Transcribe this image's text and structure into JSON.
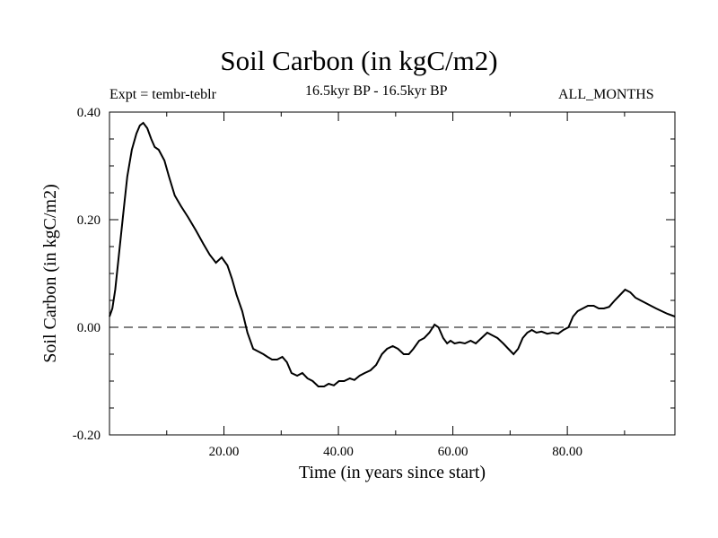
{
  "header": {
    "title": "Soil Carbon (in kgC/m2)",
    "experiment": "Expt = tembr-teblr",
    "period": "16.5kyr BP - 16.5kyr BP",
    "months": "ALL_MONTHS"
  },
  "chart_data": {
    "type": "line",
    "title": "Soil Carbon (in kgC/m2)",
    "xlabel": "Time (in years since start)",
    "ylabel": "Soil Carbon (in kgC/m2)",
    "xlim": [
      0,
      98.8
    ],
    "ylim": [
      -0.2,
      0.4
    ],
    "xticks": [
      20,
      40,
      60,
      80
    ],
    "xtick_labels": [
      "20.00",
      "40.00",
      "60.00",
      "80.00"
    ],
    "yticks": [
      -0.2,
      0.0,
      0.2,
      0.4
    ],
    "ytick_labels": [
      "-0.20",
      "0.00",
      "0.20",
      "0.40"
    ],
    "zero_line": true,
    "series": [
      {
        "x": [
          0,
          0.5,
          1,
          1.6,
          2.5,
          3.1,
          3.9,
          4.7,
          5.3,
          5.9,
          6.6,
          7.3,
          7.9,
          8.6,
          9.6,
          10.4,
          11.4,
          12.5,
          13.7,
          15.1,
          16.4,
          17.5,
          18.6,
          19.6,
          20.6,
          21.4,
          22.2,
          23.2,
          24.1,
          25.1,
          26.0,
          26.9,
          27.6,
          28.4,
          29.3,
          30.2,
          31.0,
          31.8,
          32.8,
          33.7,
          34.6,
          35.5,
          36.5,
          37.5,
          38.3,
          39.2,
          40.1,
          41.0,
          42.0,
          42.8,
          43.7,
          44.6,
          45.6,
          46.6,
          47.6,
          48.5,
          49.5,
          50.4,
          51.4,
          52.3,
          53.1,
          54.1,
          55.0,
          55.9,
          56.8,
          57.5,
          58.3,
          59.0,
          59.6,
          60.3,
          61.2,
          62.1,
          63.1,
          64.0,
          65.0,
          66.0,
          66.9,
          67.8,
          68.8,
          69.7,
          70.6,
          71.4,
          72.2,
          73.0,
          73.8,
          74.6,
          75.5,
          76.5,
          77.4,
          78.4,
          79.3,
          80.2,
          81.0,
          81.8,
          82.7,
          83.6,
          84.6,
          85.5,
          86.4,
          87.3,
          88.3,
          89.2,
          90.1,
          91.0,
          91.9,
          92.8,
          93.7,
          94.6,
          95.5,
          96.5,
          97.5,
          98.8
        ],
        "y": [
          0.02,
          0.035,
          0.07,
          0.13,
          0.22,
          0.28,
          0.33,
          0.36,
          0.375,
          0.38,
          0.37,
          0.35,
          0.335,
          0.33,
          0.31,
          0.28,
          0.245,
          0.225,
          0.205,
          0.18,
          0.155,
          0.135,
          0.12,
          0.13,
          0.115,
          0.09,
          0.06,
          0.03,
          -0.01,
          -0.04,
          -0.045,
          -0.05,
          -0.055,
          -0.06,
          -0.06,
          -0.055,
          -0.065,
          -0.085,
          -0.09,
          -0.085,
          -0.095,
          -0.1,
          -0.11,
          -0.11,
          -0.105,
          -0.108,
          -0.1,
          -0.1,
          -0.095,
          -0.098,
          -0.09,
          -0.085,
          -0.08,
          -0.07,
          -0.05,
          -0.04,
          -0.035,
          -0.04,
          -0.05,
          -0.05,
          -0.04,
          -0.025,
          -0.02,
          -0.01,
          0.005,
          0.0,
          -0.02,
          -0.03,
          -0.025,
          -0.03,
          -0.028,
          -0.03,
          -0.025,
          -0.03,
          -0.02,
          -0.01,
          -0.015,
          -0.02,
          -0.03,
          -0.04,
          -0.05,
          -0.04,
          -0.02,
          -0.01,
          -0.005,
          -0.01,
          -0.008,
          -0.012,
          -0.01,
          -0.012,
          -0.005,
          0.0,
          0.02,
          0.03,
          0.035,
          0.04,
          0.04,
          0.035,
          0.035,
          0.038,
          0.05,
          0.06,
          0.07,
          0.065,
          0.055,
          0.05,
          0.045,
          0.04,
          0.035,
          0.03,
          0.025,
          0.02
        ]
      }
    ]
  }
}
